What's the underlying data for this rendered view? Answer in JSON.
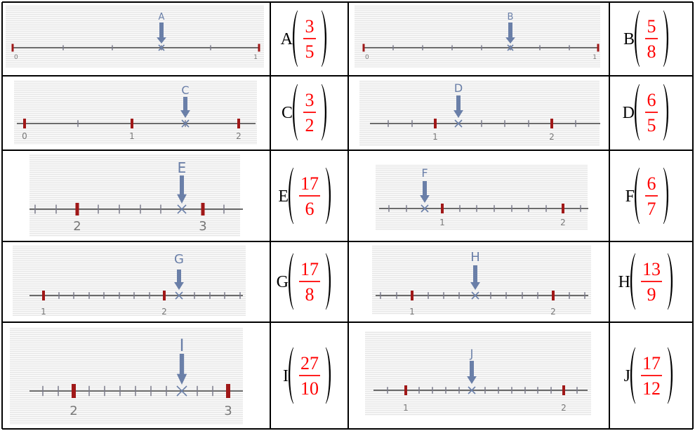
{
  "number_lines": [
    {
      "id": "A",
      "tick_labels": [
        "0",
        "1"
      ],
      "answer": {
        "letter": "A",
        "numerator": "3",
        "denominator": "5"
      }
    },
    {
      "id": "B",
      "tick_labels": [
        "0",
        "1"
      ],
      "answer": {
        "letter": "B",
        "numerator": "5",
        "denominator": "8"
      }
    },
    {
      "id": "C",
      "tick_labels": [
        "0",
        "1",
        "2"
      ],
      "answer": {
        "letter": "C",
        "numerator": "3",
        "denominator": "2"
      }
    },
    {
      "id": "D",
      "tick_labels": [
        "1",
        "2"
      ],
      "answer": {
        "letter": "D",
        "numerator": "6",
        "denominator": "5"
      }
    },
    {
      "id": "E",
      "tick_labels": [
        "2",
        "3"
      ],
      "answer": {
        "letter": "E",
        "numerator": "17",
        "denominator": "6"
      }
    },
    {
      "id": "F",
      "tick_labels": [
        "1",
        "2"
      ],
      "answer": {
        "letter": "F",
        "numerator": "6",
        "denominator": "7"
      }
    },
    {
      "id": "G",
      "tick_labels": [
        "1",
        "2"
      ],
      "answer": {
        "letter": "G",
        "numerator": "17",
        "denominator": "8"
      }
    },
    {
      "id": "H",
      "tick_labels": [
        "1",
        "2"
      ],
      "answer": {
        "letter": "H",
        "numerator": "13",
        "denominator": "9"
      }
    },
    {
      "id": "I",
      "tick_labels": [
        "2",
        "3"
      ],
      "answer": {
        "letter": "I",
        "numerator": "27",
        "denominator": "10"
      }
    },
    {
      "id": "J",
      "tick_labels": [
        "1",
        "2"
      ],
      "answer": {
        "letter": "J",
        "numerator": "17",
        "denominator": "12"
      }
    }
  ],
  "colors": {
    "answer": "#ff0000",
    "arrow": "#6a7fa8",
    "major_tick": "#a01818",
    "axis": "#6b6b6b",
    "minor_tick": "#7a7a8a",
    "grid": "#000000"
  }
}
